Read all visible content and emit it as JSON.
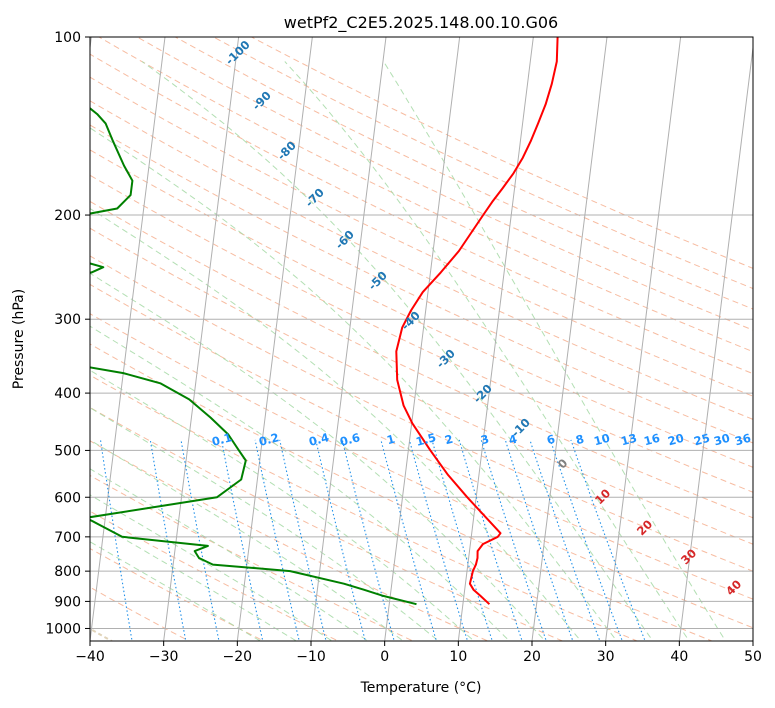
{
  "chart_data": {
    "type": "line",
    "title": "wetPf2_C2E5.2025.148.00.10.G06",
    "xlabel": "Temperature (°C)",
    "ylabel": "Pressure (hPa)",
    "xlim": [
      -40,
      50
    ],
    "ylim": [
      1050,
      100
    ],
    "y_scale": "log",
    "x_ticks": [
      "−40",
      "−30",
      "−20",
      "−10",
      "0",
      "10",
      "20",
      "30",
      "40",
      "50"
    ],
    "y_ticks": [
      "100",
      "200",
      "300",
      "400",
      "500",
      "600",
      "700",
      "800",
      "900",
      "1000"
    ],
    "grid": true,
    "series": [
      {
        "color": "#ff0000",
        "pressure": [
          910,
          880,
          860,
          840,
          800,
          780,
          760,
          740,
          720,
          700,
          690,
          600,
          550,
          500,
          450,
          420,
          380,
          340,
          310,
          290,
          270,
          250,
          230,
          200,
          190,
          180,
          170,
          160,
          150,
          140,
          130,
          120,
          110,
          100
        ],
        "values": [
          13.6,
          12.2,
          11.2,
          10.6,
          10.8,
          11.1,
          11.2,
          11.1,
          11.7,
          13.6,
          13.9,
          8.8,
          5.8,
          3.0,
          0.1,
          -1.4,
          -2.7,
          -3.3,
          -2.9,
          -2.0,
          -0.7,
          1.4,
          3.5,
          6.2,
          7.2,
          8.4,
          9.6,
          10.6,
          11.4,
          12.1,
          12.8,
          13.3,
          13.6,
          13.3
        ]
      },
      {
        "color": "#008000",
        "pressure": [
          910,
          880,
          860,
          840,
          800,
          780,
          760,
          740,
          725,
          700,
          650,
          600,
          560,
          520,
          500,
          470,
          440,
          410,
          385,
          370,
          330,
          320,
          305,
          290,
          280,
          270,
          265,
          258,
          250,
          245,
          230,
          210,
          203,
          195,
          185,
          175,
          165,
          150,
          140,
          135,
          130,
          120,
          110,
          105,
          100
        ],
        "values": [
          3.7,
          -1.1,
          -3.7,
          -6.5,
          -14.0,
          -24.6,
          -26.6,
          -27.3,
          -25.6,
          -37.4,
          -42.6,
          -25.2,
          -22.2,
          -21.9,
          -23.0,
          -24.7,
          -27.4,
          -30.6,
          -34.8,
          -40.0,
          -63.6,
          -55.0,
          -51.2,
          -50.1,
          -53.0,
          -54.2,
          -52.7,
          -50.3,
          -46.0,
          -44.5,
          -52.5,
          -55.5,
          -51.0,
          -43.6,
          -42.0,
          -42.0,
          -43.4,
          -45.3,
          -46.6,
          -47.9,
          -49.7,
          -54.0,
          -57.6,
          -58.8,
          -58.4
        ]
      }
    ],
    "dry_adiabat_labels": [
      "-100",
      "-90",
      "-80",
      "-70",
      "-60",
      "-50",
      "-40",
      "-30",
      "-20",
      "-10"
    ],
    "mixing_ratio_labels": [
      "0.1",
      "0.2",
      "0.4",
      "0.6",
      "1",
      "1.5",
      "2",
      "3",
      "4",
      "6",
      "8",
      "10",
      "13",
      "16",
      "20",
      "25",
      "30",
      "36"
    ],
    "moist_adiabat_labels": [
      "0",
      "10",
      "20",
      "30",
      "40"
    ],
    "colors": {
      "temperature": "#ff0000",
      "dewpoint": "#008000",
      "isotherm": "#b0b0b0",
      "isobar": "#b0b0b0",
      "dry_adiabat": "#f4a582",
      "moist_adiabat": "#a6d9a6",
      "mixing_ratio": "#1f8fe8",
      "dry_label": "#1f77b4",
      "mixing_label": "#1e90ff",
      "moist_zero_label": "#808080",
      "moist_label": "#d62728",
      "isopleth": "#d8c8a8"
    }
  }
}
